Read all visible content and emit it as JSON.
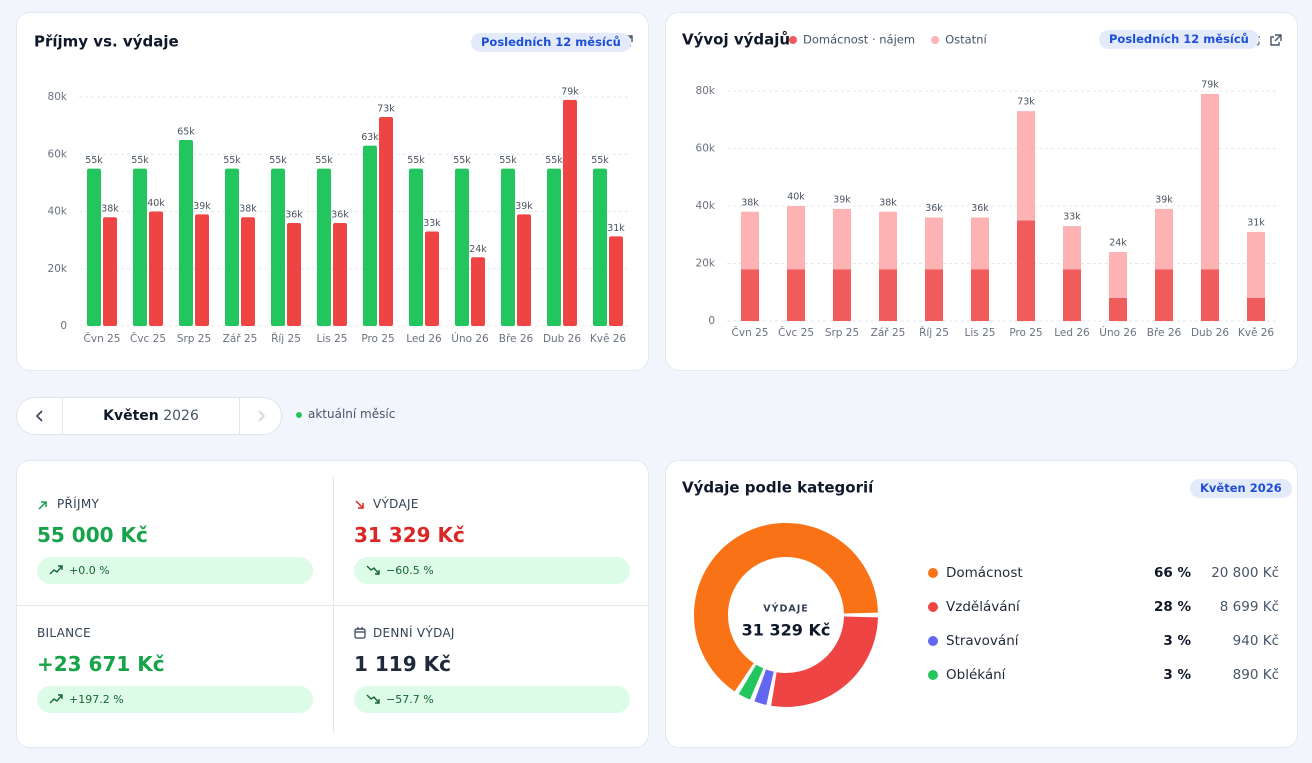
{
  "income_chart": {
    "type": "bar",
    "title": "Příjmy vs. výdaje",
    "badge": "Posledních 12 měsíců",
    "categories": [
      "Čvn 25",
      "Čvc 25",
      "Srp 25",
      "Zář 25",
      "Říj 25",
      "Lis 25",
      "Pro 25",
      "Led 26",
      "Úno 26",
      "Bře 26",
      "Dub 26",
      "Kvě 26"
    ],
    "series": [
      {
        "color": "#22c55e",
        "values": [
          55000,
          55000,
          65000,
          55000,
          55000,
          55000,
          63000,
          55000,
          55000,
          55000,
          55000,
          55000
        ],
        "value_labels": [
          "55k",
          "55k",
          "65k",
          "55k",
          "55k",
          "55k",
          "63k",
          "55k",
          "55k",
          "55k",
          "55k",
          "55k"
        ]
      },
      {
        "color": "#ef4444",
        "values": [
          38000,
          40000,
          39000,
          38000,
          36000,
          36000,
          73000,
          33000,
          24000,
          39000,
          79000,
          31329
        ],
        "value_labels": [
          "38k",
          "40k",
          "39k",
          "38k",
          "36k",
          "36k",
          "73k",
          "33k",
          "24k",
          "39k",
          "79k",
          "31k"
        ]
      }
    ],
    "ylim": [
      0,
      80000
    ],
    "yticks": [
      0,
      {
        "value": 20000,
        "label": "20k"
      },
      {
        "value": 40000,
        "label": "40k"
      },
      {
        "value": 60000,
        "label": "60k"
      },
      {
        "value": 80000,
        "label": "80k"
      }
    ],
    "grid": true
  },
  "expense_chart": {
    "type": "stacked_bar",
    "title": "Vývoj výdajů",
    "badge": "Posledních 12 měsíců",
    "categories": [
      "Čvn 25",
      "Čvc 25",
      "Srp 25",
      "Zář 25",
      "Říj 25",
      "Lis 25",
      "Pro 25",
      "Led 26",
      "Úno 26",
      "Bře 26",
      "Dub 26",
      "Kvě 26"
    ],
    "series": [
      {
        "name": "Domácnost · nájem",
        "color": "#f05b5b",
        "values": [
          18000,
          18000,
          18000,
          18000,
          18000,
          18000,
          35000,
          18000,
          8000,
          18000,
          18000,
          8000
        ]
      },
      {
        "name": "Ostatní",
        "color": "#fdb3b3",
        "values": [
          20000,
          22000,
          21000,
          20000,
          18000,
          18000,
          38000,
          15000,
          16000,
          21000,
          61000,
          23000
        ]
      }
    ],
    "total_labels": [
      "38k",
      "40k",
      "39k",
      "38k",
      "36k",
      "36k",
      "73k",
      "33k",
      "24k",
      "39k",
      "79k",
      "31k"
    ],
    "ylim": [
      0,
      80000
    ],
    "yticks": [
      0,
      {
        "value": 20000,
        "label": "20k"
      },
      {
        "value": 40000,
        "label": "40k"
      },
      {
        "value": 60000,
        "label": "60k"
      },
      {
        "value": 80000,
        "label": "80k"
      }
    ],
    "grid": true
  },
  "month_nav": {
    "month": "Květen",
    "year": "2026",
    "status": "aktuální měsíc"
  },
  "kpis": [
    {
      "label": "PŘÍJMY",
      "value": "55 000 Kč",
      "change": "+0.0 %"
    },
    {
      "label": "VÝDAJE",
      "value": "31 329 Kč",
      "change": "−60.5 %"
    },
    {
      "label": "BILANCE",
      "value": "+23 671 Kč",
      "change": "+197.2 %"
    },
    {
      "label": "DENNÍ VÝDAJ",
      "value": "1 119 Kč",
      "change": "−57.7 %"
    }
  ],
  "categories_chart": {
    "type": "donut",
    "title": "Výdaje podle kategorií",
    "badge": "Květen 2026",
    "center_label": "VÝDAJE",
    "center_value": "31 329 Kč",
    "items": [
      {
        "name": "Domácnost",
        "color": "#f97316",
        "value": 66,
        "value_label": "66 %",
        "amount": "20 800 Kč"
      },
      {
        "name": "Vzdělávání",
        "color": "#ef4444",
        "value": 28,
        "value_label": "28 %",
        "amount": "8 699 Kč"
      },
      {
        "name": "Stravování",
        "color": "#6366f1",
        "value": 3,
        "value_label": "3 %",
        "amount": "940 Kč"
      },
      {
        "name": "Oblékání",
        "color": "#22c55e",
        "value": 3,
        "value_label": "3 %",
        "amount": "890 Kč"
      }
    ]
  }
}
